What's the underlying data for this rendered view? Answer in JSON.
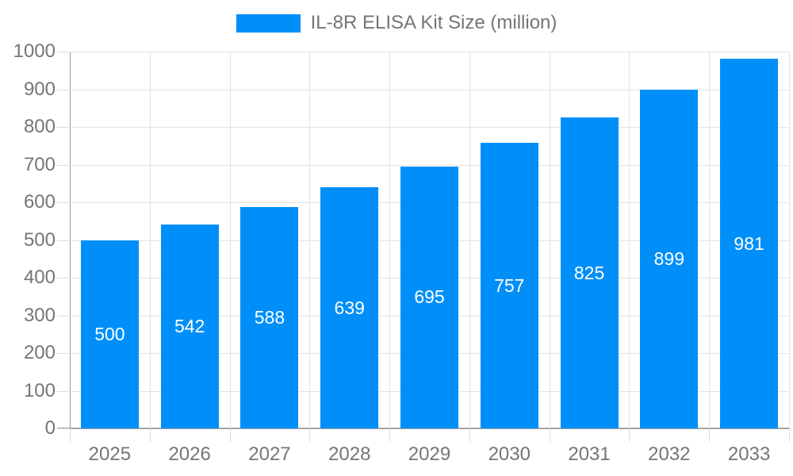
{
  "chart_data": {
    "type": "bar",
    "title": "IL-8R ELISA Kit Size (million)",
    "categories": [
      "2025",
      "2026",
      "2027",
      "2028",
      "2029",
      "2030",
      "2031",
      "2032",
      "2033"
    ],
    "series": [
      {
        "name": "IL-8R ELISA Kit Size (million)",
        "values": [
          500,
          542,
          588,
          639,
          695,
          757,
          825,
          899,
          981
        ]
      }
    ],
    "xlabel": "",
    "ylabel": "",
    "ylim": [
      0,
      1000
    ],
    "ytick_interval": 100,
    "yticks": [
      0,
      100,
      200,
      300,
      400,
      500,
      600,
      700,
      800,
      900,
      1000
    ],
    "grid": true,
    "legend_position": "top-center",
    "value_labels": "inside-center-white"
  },
  "colors": {
    "bar_fill": "#008ff8",
    "value_label_text": "#ffffff",
    "axis_label_text": "#757575",
    "legend_text": "#757575",
    "gridline": "#e3e3e3",
    "axis_line": "#999999",
    "background": "#ffffff"
  }
}
